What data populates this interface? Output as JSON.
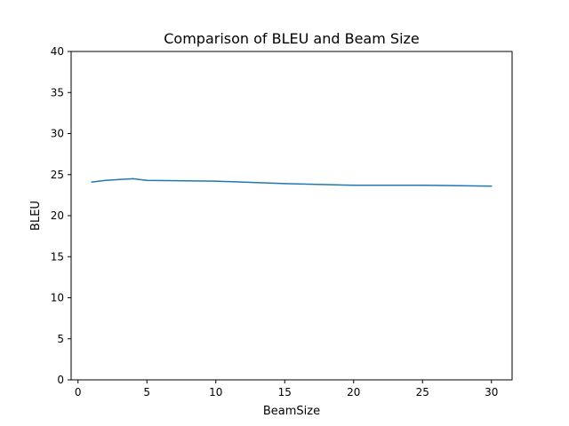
{
  "chart_data": {
    "type": "line",
    "title": "Comparison of BLEU and Beam Size",
    "xlabel": "BeamSize",
    "ylabel": "BLEU",
    "xlim": [
      -0.5,
      31.5
    ],
    "ylim": [
      0,
      40
    ],
    "xticks": [
      0,
      5,
      10,
      15,
      20,
      25,
      30
    ],
    "yticks": [
      0,
      5,
      10,
      15,
      20,
      25,
      30,
      35,
      40
    ],
    "grid": false,
    "series": [
      {
        "color": "#1f77b4",
        "x": [
          1,
          2,
          3,
          4,
          5,
          10,
          15,
          20,
          25,
          30
        ],
        "y": [
          24.1,
          24.3,
          24.4,
          24.5,
          24.3,
          24.2,
          23.9,
          23.7,
          23.7,
          23.6
        ]
      }
    ]
  }
}
